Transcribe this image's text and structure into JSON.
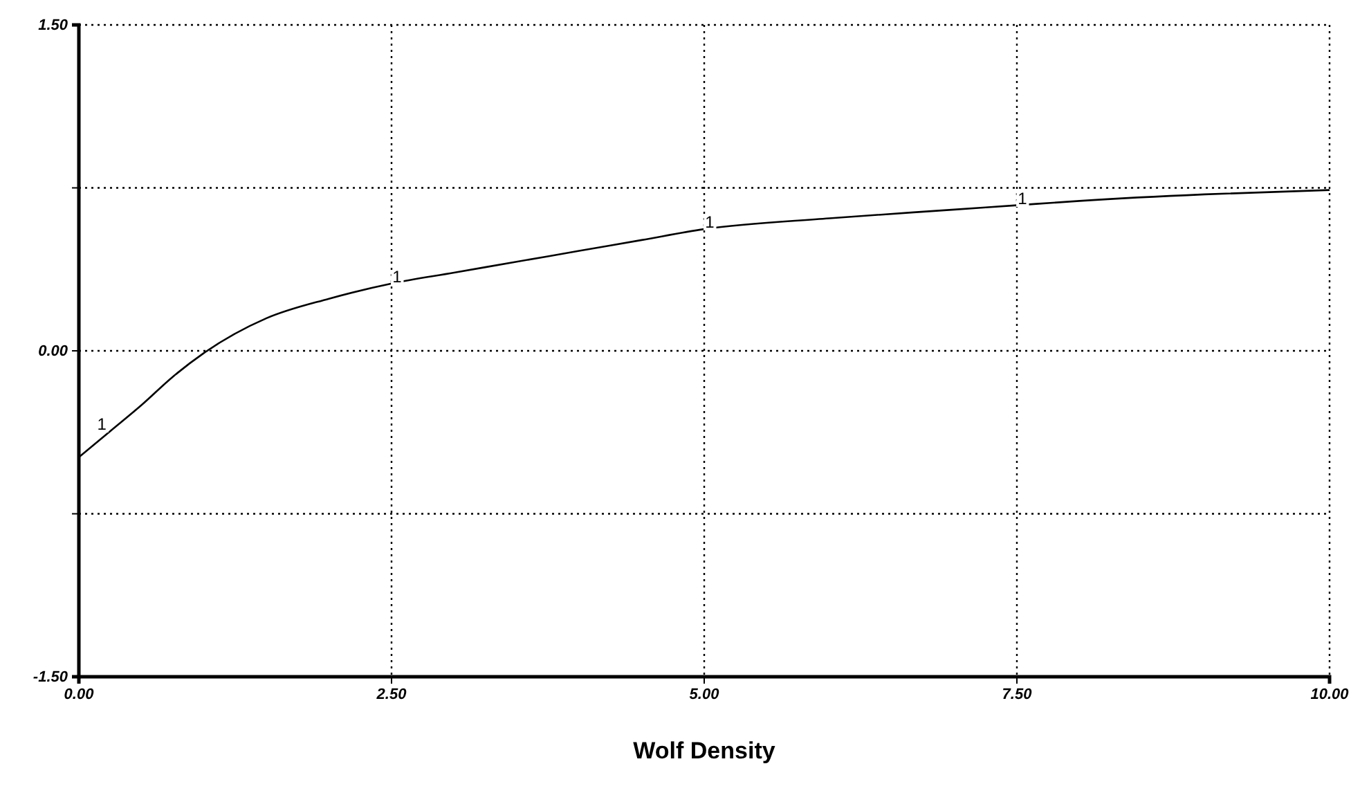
{
  "chart_data": {
    "type": "line",
    "xlabel": "Wolf Density",
    "xlim": [
      0,
      10
    ],
    "xticks": [
      {
        "value": 0,
        "label": "0.00"
      },
      {
        "value": 2.5,
        "label": "2.50"
      },
      {
        "value": 5,
        "label": "5.00"
      },
      {
        "value": 7.5,
        "label": "7.50"
      },
      {
        "value": 10,
        "label": "10.00"
      }
    ],
    "ylim": [
      -1.5,
      1.5
    ],
    "yticks": [
      {
        "value": -1.5,
        "label": "-1.50"
      },
      {
        "value": -0.75,
        "label": null
      },
      {
        "value": 0,
        "label": "0.00"
      },
      {
        "value": 0.75,
        "label": null
      },
      {
        "value": 1.5,
        "label": "1.50"
      }
    ],
    "grid": true,
    "line_style": "solid",
    "marker": "none",
    "series": [
      {
        "name": "1",
        "color": "#000000",
        "x": [
          0,
          0.25,
          0.5,
          0.75,
          1,
          1.5,
          2,
          2.5,
          3,
          3.5,
          4,
          4.5,
          5,
          6,
          7,
          7.5,
          8,
          9,
          10
        ],
        "values": [
          -0.49,
          -0.37,
          -0.25,
          -0.12,
          -0.01,
          0.15,
          0.24,
          0.31,
          0.36,
          0.41,
          0.46,
          0.51,
          0.56,
          0.61,
          0.65,
          0.67,
          0.69,
          0.72,
          0.74
        ]
      }
    ]
  }
}
